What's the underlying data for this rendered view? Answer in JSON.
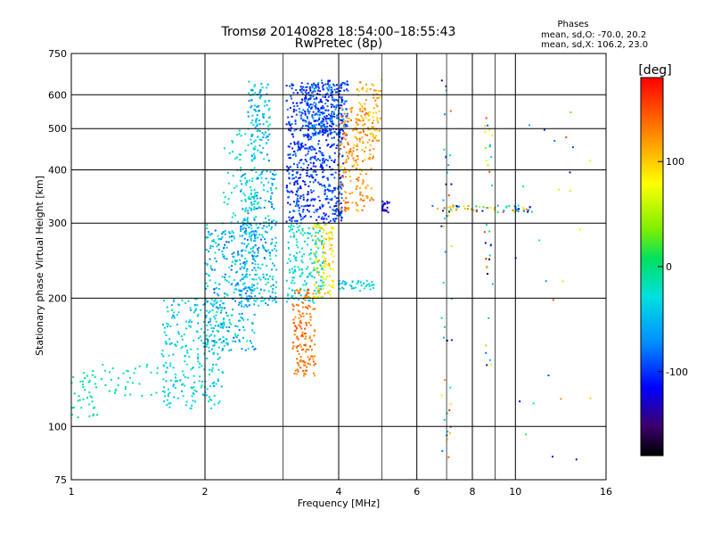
{
  "title": "Tromsø 20140828 18:54:00–18:55:43",
  "subtitle": "RwPretec (8p)",
  "phase_box": {
    "heading": "Phases",
    "line_o": "mean, sd,O: -70.0, 20.2",
    "line_x": "mean, sd,X: 106.2, 23.0"
  },
  "colorbar": {
    "unit_label": "[deg]",
    "range": [
      -180,
      180
    ],
    "ticks": [
      {
        "value": 100,
        "label": "100"
      },
      {
        "value": 0,
        "label": "0"
      },
      {
        "value": -100,
        "label": "-100"
      }
    ]
  },
  "chart_data": {
    "type": "scatter",
    "xlabel": "Frequency [MHz]",
    "ylabel": "Stationary phase Virtual Height [km]",
    "x_scale": "log",
    "y_scale": "log",
    "xlim": [
      1,
      16
    ],
    "ylim": [
      75,
      750
    ],
    "grid": true,
    "x_ticks": [
      {
        "value": 1,
        "label": "1"
      },
      {
        "value": 2,
        "label": "2"
      },
      {
        "value": 4,
        "label": "4"
      },
      {
        "value": 6,
        "label": "6"
      },
      {
        "value": 8,
        "label": "8"
      },
      {
        "value": 10,
        "label": "10"
      },
      {
        "value": 16,
        "label": "16"
      }
    ],
    "y_ticks": [
      {
        "value": 75,
        "label": "75"
      },
      {
        "value": 100,
        "label": "100"
      },
      {
        "value": 200,
        "label": "200"
      },
      {
        "value": 300,
        "label": "300"
      },
      {
        "value": 400,
        "label": "400"
      },
      {
        "value": 500,
        "label": "500"
      },
      {
        "value": 600,
        "label": "600"
      },
      {
        "value": 750,
        "label": "750"
      }
    ],
    "x_minor_grid": [
      3,
      5,
      7,
      9
    ],
    "point_clusters": [
      {
        "f": [
          1.0,
          1.15
        ],
        "h": [
          105,
          135
        ],
        "phase": [
          -20,
          -5
        ],
        "n": 40
      },
      {
        "f": [
          1.15,
          1.6
        ],
        "h": [
          118,
          140
        ],
        "phase": [
          -20,
          -5
        ],
        "n": 35
      },
      {
        "f": [
          1.6,
          2.2
        ],
        "h": [
          110,
          200
        ],
        "phase": [
          -60,
          -10
        ],
        "n": 260
      },
      {
        "f": [
          2.0,
          2.6
        ],
        "h": [
          150,
          300
        ],
        "phase": [
          -90,
          -10
        ],
        "n": 320
      },
      {
        "f": [
          2.4,
          2.9
        ],
        "h": [
          190,
          400
        ],
        "phase": [
          -90,
          -10
        ],
        "n": 300
      },
      {
        "f": [
          2.5,
          2.8
        ],
        "h": [
          420,
          650
        ],
        "phase": [
          -80,
          -10
        ],
        "n": 120
      },
      {
        "f": [
          2.2,
          2.6
        ],
        "h": [
          300,
          500
        ],
        "phase": [
          -40,
          -10
        ],
        "n": 60
      },
      {
        "f": [
          3.05,
          4.1
        ],
        "h": [
          300,
          640
        ],
        "phase": [
          -120,
          -80
        ],
        "n": 650
      },
      {
        "f": [
          3.3,
          4.2
        ],
        "h": [
          480,
          650
        ],
        "phase": [
          -120,
          -60
        ],
        "n": 220
      },
      {
        "f": [
          3.05,
          3.7
        ],
        "h": [
          195,
          300
        ],
        "phase": [
          -50,
          -10
        ],
        "n": 180
      },
      {
        "f": [
          3.5,
          3.9
        ],
        "h": [
          200,
          300
        ],
        "phase": [
          60,
          120
        ],
        "n": 120
      },
      {
        "f": [
          3.15,
          3.55
        ],
        "h": [
          130,
          210
        ],
        "phase": [
          120,
          150
        ],
        "n": 150
      },
      {
        "f": [
          4.0,
          4.8
        ],
        "h": [
          320,
          560
        ],
        "phase": [
          100,
          150
        ],
        "n": 200
      },
      {
        "f": [
          4.4,
          5.0
        ],
        "h": [
          460,
          650
        ],
        "phase": [
          90,
          130
        ],
        "n": 80
      },
      {
        "f": [
          4.0,
          4.8
        ],
        "h": [
          208,
          220
        ],
        "phase": [
          -60,
          -20
        ],
        "n": 40
      },
      {
        "f": [
          5.0,
          5.2
        ],
        "h": [
          318,
          338
        ],
        "phase": [
          -140,
          -110
        ],
        "n": 20
      },
      {
        "f": [
          6.3,
          11.0
        ],
        "h": [
          318,
          330
        ],
        "phase": [
          -160,
          160
        ],
        "n": 60
      },
      {
        "f": [
          6.8,
          7.2
        ],
        "h": [
          80,
          650
        ],
        "phase": [
          -180,
          180
        ],
        "n": 45
      },
      {
        "f": [
          8.5,
          8.9
        ],
        "h": [
          120,
          550
        ],
        "phase": [
          -180,
          180
        ],
        "n": 35
      },
      {
        "f": [
          10.0,
          15.0
        ],
        "h": [
          80,
          550
        ],
        "phase": [
          -180,
          180
        ],
        "n": 25
      }
    ]
  }
}
